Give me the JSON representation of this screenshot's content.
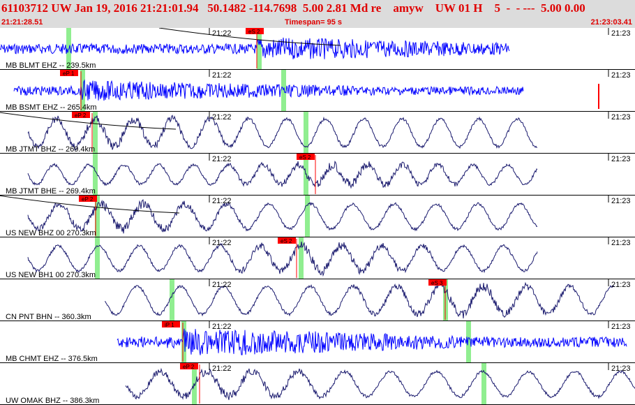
{
  "header": {
    "title": "61103712 UW Jan 19, 2016 21:21:01.94   50.1482 -114.7698  5.00 2.81 Md re    amyw    UW 01 H    5  -  - ---  5.00 0.00",
    "time_start": "21:21:28.51",
    "timespan": "Timespan=  95 s",
    "time_end": "21:23:03.41"
  },
  "tick_labels": {
    "mid": "21:22",
    "right": "21:23"
  },
  "colors": {
    "header_bg": "#dcdcdc",
    "header_text": "#e00000",
    "trace_blue": "#0000ff",
    "trace_navy": "#1a1a6e",
    "pick_red": "#ff0000",
    "window_green": "#90ee90"
  },
  "traces": [
    {
      "label": "MB BLMT EHZ -- 239.5km",
      "pick": "eS 2",
      "color": "blue",
      "style": "noise"
    },
    {
      "label": "MB BSMT EHZ -- 265.4km",
      "pick": "eP 1",
      "color": "blue",
      "style": "noise"
    },
    {
      "label": "MB JTMT BHZ -- 269.4km",
      "pick": "eP 2",
      "color": "navy",
      "style": "wave"
    },
    {
      "label": "MB JTMT BHE -- 269.4km",
      "pick": "eS 2",
      "color": "navy",
      "style": "wave"
    },
    {
      "label": "US NEW BHZ 00 270.3km",
      "pick": "eP 2",
      "color": "navy",
      "style": "wave"
    },
    {
      "label": "US NEW BH1 00 270.3km",
      "pick": "eS 2",
      "color": "navy",
      "style": "wave"
    },
    {
      "label": "CN PNT BHN -- 360.3km",
      "pick": "eS 3",
      "color": "navy",
      "style": "wave"
    },
    {
      "label": "MB CHMT EHZ -- 376.5km",
      "pick": "iP 1",
      "color": "blue",
      "style": "noise"
    },
    {
      "label": "UW OMAK BHZ -- 386.3km",
      "pick": "eP 2",
      "color": "navy",
      "style": "wave"
    }
  ]
}
